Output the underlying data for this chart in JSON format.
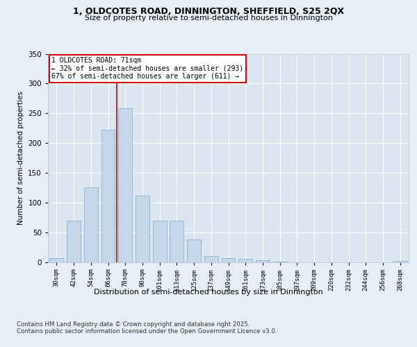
{
  "title_line1": "1, OLDCOTES ROAD, DINNINGTON, SHEFFIELD, S25 2QX",
  "title_line2": "Size of property relative to semi-detached houses in Dinnington",
  "xlabel": "Distribution of semi-detached houses by size in Dinnington",
  "ylabel": "Number of semi-detached properties",
  "categories": [
    "30sqm",
    "42sqm",
    "54sqm",
    "66sqm",
    "78sqm",
    "90sqm",
    "101sqm",
    "113sqm",
    "125sqm",
    "137sqm",
    "149sqm",
    "161sqm",
    "173sqm",
    "185sqm",
    "197sqm",
    "209sqm",
    "220sqm",
    "232sqm",
    "244sqm",
    "256sqm",
    "268sqm"
  ],
  "values": [
    7,
    70,
    126,
    222,
    258,
    112,
    70,
    70,
    38,
    10,
    7,
    5,
    3,
    1,
    0,
    0,
    0,
    0,
    0,
    0,
    2
  ],
  "bar_color": "#c5d8ea",
  "bar_edge_color": "#8ab0cc",
  "vline_x": 3.5,
  "vline_color": "#cc0000",
  "annotation_title": "1 OLDCOTES ROAD: 71sqm",
  "annotation_line2": "← 32% of semi-detached houses are smaller (293)",
  "annotation_line3": "67% of semi-detached houses are larger (611) →",
  "annotation_box_color": "white",
  "annotation_box_edge": "#cc0000",
  "ylim": [
    0,
    350
  ],
  "yticks": [
    0,
    50,
    100,
    150,
    200,
    250,
    300,
    350
  ],
  "background_color": "#e8eef5",
  "plot_bg_color": "#dce6f0",
  "footer_line1": "Contains HM Land Registry data © Crown copyright and database right 2025.",
  "footer_line2": "Contains public sector information licensed under the Open Government Licence v3.0."
}
